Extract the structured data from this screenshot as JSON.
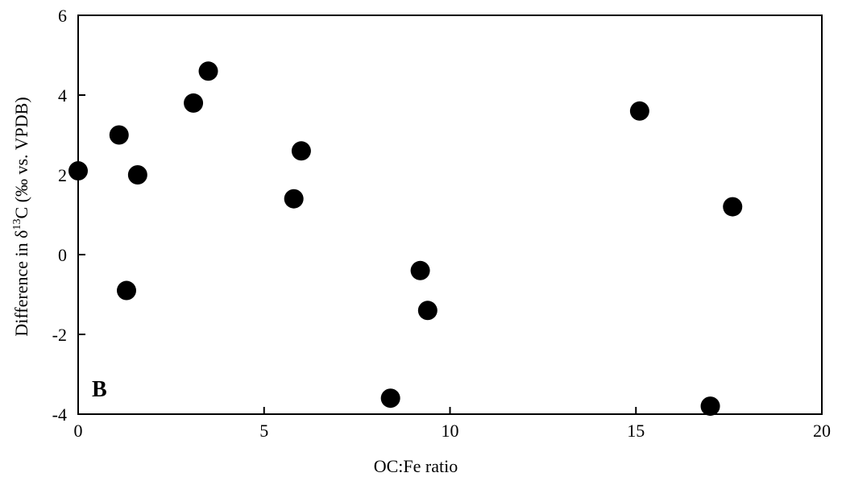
{
  "chart_data": {
    "type": "scatter",
    "panel_label": "B",
    "xlabel": "OC:Fe ratio",
    "ylabel": {
      "prefix": "Difference in δ",
      "superscript": "13",
      "suffix": "C (‰ vs. VPDB)"
    },
    "xlim": [
      0,
      20
    ],
    "ylim": [
      -4,
      6
    ],
    "x_ticks": [
      0,
      5,
      10,
      15,
      20
    ],
    "y_ticks": [
      -4,
      -2,
      0,
      2,
      4,
      6
    ],
    "x_tick_labels": [
      "0",
      "5",
      "10",
      "15",
      "20"
    ],
    "y_tick_labels": [
      "-4",
      "-2",
      "0",
      "2",
      "4",
      "6"
    ],
    "marker_color": "#000000",
    "grid": false,
    "points": [
      {
        "x": 0.0,
        "y": 2.1
      },
      {
        "x": 1.1,
        "y": 3.0
      },
      {
        "x": 1.3,
        "y": -0.9
      },
      {
        "x": 1.6,
        "y": 2.0
      },
      {
        "x": 3.1,
        "y": 3.8
      },
      {
        "x": 3.5,
        "y": 4.6
      },
      {
        "x": 5.8,
        "y": 1.4
      },
      {
        "x": 6.0,
        "y": 2.6
      },
      {
        "x": 8.4,
        "y": -3.6
      },
      {
        "x": 9.2,
        "y": -0.4
      },
      {
        "x": 9.4,
        "y": -1.4
      },
      {
        "x": 15.1,
        "y": 3.6
      },
      {
        "x": 17.0,
        "y": -3.8
      },
      {
        "x": 17.6,
        "y": 1.2
      }
    ]
  }
}
